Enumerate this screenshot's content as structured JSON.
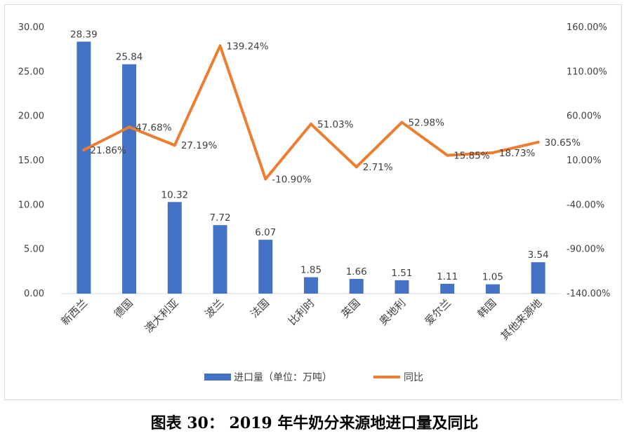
{
  "caption": "图表 30：  2019 年牛奶分来源地进口量及同比",
  "chart_data": {
    "type": "bar",
    "categories": [
      "新西兰",
      "德国",
      "澳大利亚",
      "波兰",
      "法国",
      "比利时",
      "英国",
      "奥地利",
      "爱尔兰",
      "韩国",
      "其他来源地"
    ],
    "series": [
      {
        "name": "进口量（单位：万吨）",
        "type": "bar",
        "axis": "left",
        "color": "#4472C4",
        "values": [
          28.39,
          25.84,
          10.32,
          7.72,
          6.07,
          1.85,
          1.66,
          1.51,
          1.11,
          1.05,
          3.54
        ],
        "labels": [
          "28.39",
          "25.84",
          "10.32",
          "7.72",
          "6.07",
          "1.85",
          "1.66",
          "1.51",
          "1.11",
          "1.05",
          "3.54"
        ]
      },
      {
        "name": "同比",
        "type": "line",
        "axis": "right",
        "color": "#ED7D31",
        "values": [
          21.86,
          47.68,
          27.19,
          139.24,
          -10.9,
          51.03,
          2.71,
          52.98,
          15.85,
          18.73,
          30.65
        ],
        "labels": [
          "21.86%",
          "47.68%",
          "27.19%",
          "139.24%",
          "-10.90%",
          "51.03%",
          "2.71%",
          "52.98%",
          "15.85%",
          "18.73%",
          "30.65%"
        ]
      }
    ],
    "y_left": {
      "ylim": [
        0,
        30
      ],
      "ticks": [
        0,
        5,
        10,
        15,
        20,
        25,
        30
      ],
      "tick_labels": [
        "0.00",
        "5.00",
        "10.00",
        "15.00",
        "20.00",
        "25.00",
        "30.00"
      ]
    },
    "y_right": {
      "ylim": [
        -140,
        160
      ],
      "ticks": [
        -140,
        -90,
        -40,
        10,
        60,
        110,
        160
      ],
      "tick_labels": [
        "-140.00%",
        "-90.00%",
        "-40.00%",
        "10.00%",
        "60.00%",
        "110.00%",
        "160.00%"
      ]
    },
    "grid": false,
    "legend_position": "bottom"
  }
}
